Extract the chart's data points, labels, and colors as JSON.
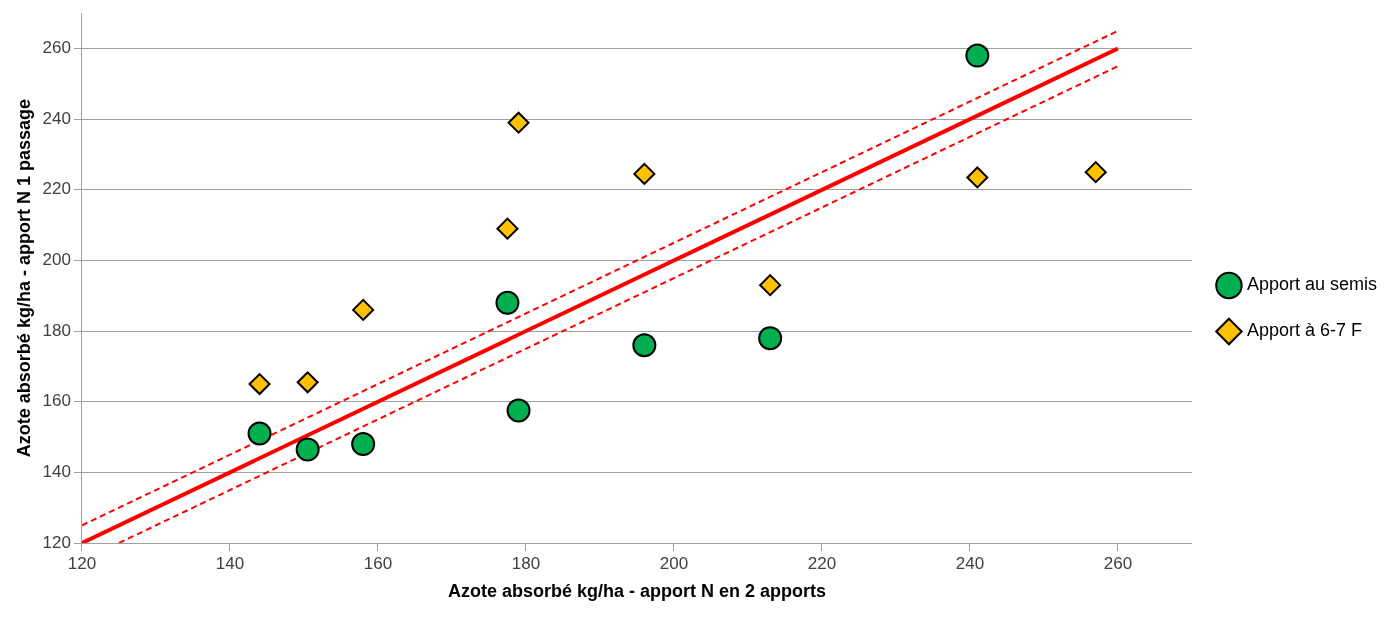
{
  "chart_data": {
    "type": "scatter",
    "xlabel": "Azote absorbé kg/ha - apport N en 2 apports",
    "ylabel": "Azote absorbé kg/ha - apport N 1 passage",
    "xlim": [
      120,
      270
    ],
    "xticks": [
      120,
      140,
      160,
      180,
      200,
      220,
      240,
      260
    ],
    "ylim": [
      120,
      270
    ],
    "yticks": [
      120,
      140,
      160,
      180,
      200,
      220,
      240,
      260
    ],
    "grid": "y",
    "legend": "right",
    "series": [
      {
        "name": "Apport au semis",
        "type": "scatter",
        "marker": "circle",
        "color": "#00b050",
        "x": [
          144,
          150.5,
          158,
          177.5,
          179,
          196,
          213,
          241
        ],
        "values": [
          151,
          146.5,
          148,
          188,
          157.5,
          176,
          178,
          258
        ]
      },
      {
        "name": "Apport à 6-7 F",
        "type": "scatter",
        "marker": "diamond",
        "color": "#ffc000",
        "x": [
          144,
          150.5,
          158,
          177.5,
          179,
          196,
          213,
          241,
          257
        ],
        "values": [
          165,
          165.5,
          186,
          209,
          239,
          224.5,
          193,
          223.5,
          225
        ]
      },
      {
        "type": "line",
        "line_style": "solid",
        "color": "#ff0000",
        "x": [
          120,
          260
        ],
        "values": [
          120,
          260
        ]
      },
      {
        "type": "line",
        "line_style": "dashed",
        "color": "#ff0000",
        "x": [
          120,
          260
        ],
        "values": [
          125,
          265
        ]
      },
      {
        "type": "line",
        "line_style": "dashed",
        "color": "#ff0000",
        "x": [
          125,
          260
        ],
        "values": [
          120,
          255
        ]
      }
    ]
  }
}
